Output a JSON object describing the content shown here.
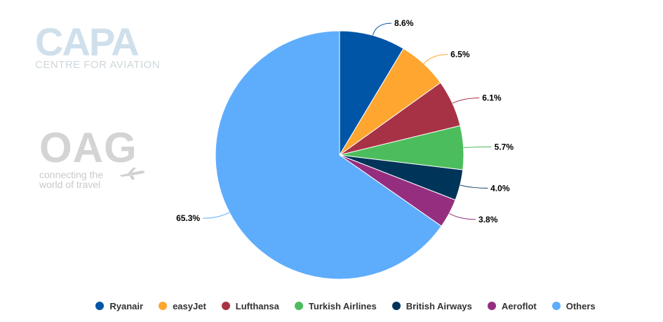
{
  "logos": {
    "capa_main": "CAPA",
    "capa_sub": "CENTRE FOR AVIATION",
    "oag_main": "OAG",
    "oag_tagline": "connecting the world of travel"
  },
  "chart_data": {
    "type": "pie",
    "title": "",
    "legend_position": "bottom",
    "slices": [
      {
        "name": "Ryanair",
        "value": 8.6,
        "label": "8.6%",
        "color": "#0055a6"
      },
      {
        "name": "easyJet",
        "value": 6.5,
        "label": "6.5%",
        "color": "#ffa630"
      },
      {
        "name": "Lufthansa",
        "value": 6.1,
        "label": "6.1%",
        "color": "#a83245"
      },
      {
        "name": "Turkish Airlines",
        "value": 5.7,
        "label": "5.7%",
        "color": "#4cbd5c"
      },
      {
        "name": "British Airways",
        "value": 4.0,
        "label": "4.0%",
        "color": "#003459"
      },
      {
        "name": "Aeroflot",
        "value": 3.8,
        "label": "3.8%",
        "color": "#962e80"
      },
      {
        "name": "Others",
        "value": 65.3,
        "label": "65.3%",
        "color": "#5eadfc"
      }
    ]
  }
}
